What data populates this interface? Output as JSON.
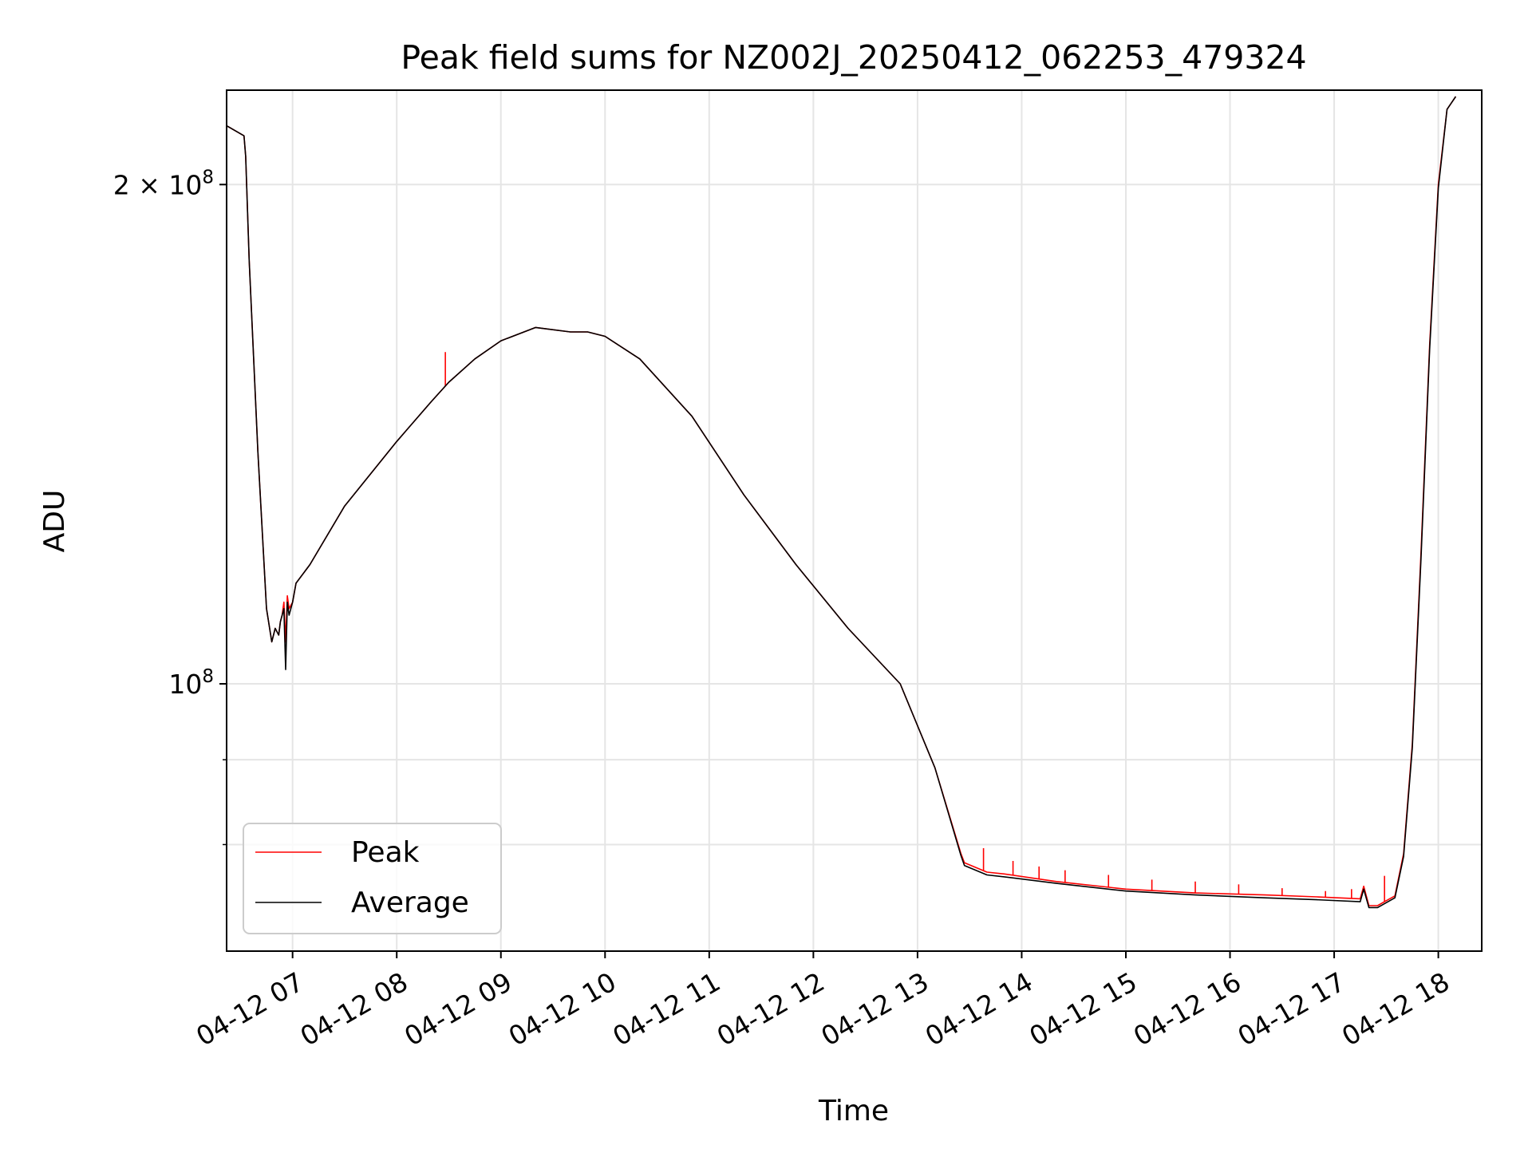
{
  "chart_data": {
    "type": "line",
    "title": "Peak field sums for NZ002J_20250412_062253_479324",
    "xlabel": "Time",
    "ylabel": "ADU",
    "yscale": "log",
    "xlim": [
      "2025-04-12 06:22",
      "2025-04-12 18:25"
    ],
    "ylim": [
      69000000,
      228000000
    ],
    "grid": true,
    "legend_position": "lower-left",
    "x_ticks": [
      {
        "x": "2025-04-12 07:00",
        "label": "04-12 07"
      },
      {
        "x": "2025-04-12 08:00",
        "label": "04-12 08"
      },
      {
        "x": "2025-04-12 09:00",
        "label": "04-12 09"
      },
      {
        "x": "2025-04-12 10:00",
        "label": "04-12 10"
      },
      {
        "x": "2025-04-12 11:00",
        "label": "04-12 11"
      },
      {
        "x": "2025-04-12 12:00",
        "label": "04-12 12"
      },
      {
        "x": "2025-04-12 13:00",
        "label": "04-12 13"
      },
      {
        "x": "2025-04-12 14:00",
        "label": "04-12 14"
      },
      {
        "x": "2025-04-12 15:00",
        "label": "04-12 15"
      },
      {
        "x": "2025-04-12 16:00",
        "label": "04-12 16"
      },
      {
        "x": "2025-04-12 17:00",
        "label": "04-12 17"
      },
      {
        "x": "2025-04-12 18:00",
        "label": "04-12 18"
      }
    ],
    "y_major_ticks": [
      {
        "value": 100000000,
        "base": "10",
        "exp": "8",
        "coef": ""
      },
      {
        "value": 200000000,
        "base": "10",
        "exp": "8",
        "coef": "2 × "
      }
    ],
    "y_minor_ticks": [
      80000000,
      90000000
    ],
    "series": [
      {
        "name": "Peak",
        "color": "#ff0000",
        "x": [
          "2025-04-12 06:22",
          "2025-04-12 06:32",
          "2025-04-12 06:33",
          "2025-04-12 06:35",
          "2025-04-12 06:40",
          "2025-04-12 06:45",
          "2025-04-12 06:48",
          "2025-04-12 06:50",
          "2025-04-12 06:52",
          "2025-04-12 06:53",
          "2025-04-12 06:54",
          "2025-04-12 06:55",
          "2025-04-12 06:56",
          "2025-04-12 06:57",
          "2025-04-12 06:58",
          "2025-04-12 07:00",
          "2025-04-12 07:02",
          "2025-04-12 07:10",
          "2025-04-12 07:30",
          "2025-04-12 08:00",
          "2025-04-12 08:20",
          "2025-04-12 08:30",
          "2025-04-12 08:45",
          "2025-04-12 09:00",
          "2025-04-12 09:20",
          "2025-04-12 09:40",
          "2025-04-12 09:50",
          "2025-04-12 10:00",
          "2025-04-12 10:20",
          "2025-04-12 10:50",
          "2025-04-12 11:20",
          "2025-04-12 11:50",
          "2025-04-12 12:20",
          "2025-04-12 12:50",
          "2025-04-12 13:10",
          "2025-04-12 13:25",
          "2025-04-12 13:27",
          "2025-04-12 13:40",
          "2025-04-12 13:50",
          "2025-04-12 14:20",
          "2025-04-12 15:00",
          "2025-04-12 15:40",
          "2025-04-12 16:20",
          "2025-04-12 16:50",
          "2025-04-12 17:15",
          "2025-04-12 17:17",
          "2025-04-12 17:20",
          "2025-04-12 17:25",
          "2025-04-12 17:30",
          "2025-04-12 17:35",
          "2025-04-12 17:40",
          "2025-04-12 17:45",
          "2025-04-12 17:50",
          "2025-04-12 17:55",
          "2025-04-12 18:00",
          "2025-04-12 18:05",
          "2025-04-12 18:10"
        ],
        "y": [
          217000000,
          214000000,
          208000000,
          180000000,
          138000000,
          111000000,
          106000000,
          108000000,
          107000000,
          109000000,
          110000000,
          112000000,
          106000000,
          113000000,
          111000000,
          112000000,
          115000000,
          118000000,
          128000000,
          140000000,
          148000000,
          152000000,
          157000000,
          161000000,
          164000000,
          163000000,
          163000000,
          162000000,
          157000000,
          145000000,
          130000000,
          118000000,
          108000000,
          100000000,
          89000000,
          79000000,
          78000000,
          77000000,
          76800000,
          76000000,
          75200000,
          74800000,
          74600000,
          74400000,
          74200000,
          75500000,
          73500000,
          73500000,
          74000000,
          74500000,
          79000000,
          92000000,
          120000000,
          160000000,
          200000000,
          222000000,
          226000000
        ],
        "spikes": [
          {
            "x": "2025-04-12 08:28",
            "y": 158500000
          },
          {
            "x": "2025-04-12 13:38",
            "y": 79600000
          },
          {
            "x": "2025-04-12 13:55",
            "y": 78200000
          },
          {
            "x": "2025-04-12 14:10",
            "y": 77600000
          },
          {
            "x": "2025-04-12 14:25",
            "y": 77200000
          },
          {
            "x": "2025-04-12 14:50",
            "y": 76700000
          },
          {
            "x": "2025-04-12 15:15",
            "y": 76200000
          },
          {
            "x": "2025-04-12 15:40",
            "y": 76000000
          },
          {
            "x": "2025-04-12 16:05",
            "y": 75700000
          },
          {
            "x": "2025-04-12 16:30",
            "y": 75300000
          },
          {
            "x": "2025-04-12 16:55",
            "y": 75000000
          },
          {
            "x": "2025-04-12 17:10",
            "y": 75200000
          },
          {
            "x": "2025-04-12 17:29",
            "y": 76600000
          }
        ]
      },
      {
        "name": "Average",
        "color": "#000000",
        "x": [
          "2025-04-12 06:22",
          "2025-04-12 06:32",
          "2025-04-12 06:33",
          "2025-04-12 06:35",
          "2025-04-12 06:40",
          "2025-04-12 06:45",
          "2025-04-12 06:48",
          "2025-04-12 06:50",
          "2025-04-12 06:52",
          "2025-04-12 06:53",
          "2025-04-12 06:54",
          "2025-04-12 06:55",
          "2025-04-12 06:56",
          "2025-04-12 06:57",
          "2025-04-12 06:58",
          "2025-04-12 07:00",
          "2025-04-12 07:02",
          "2025-04-12 07:10",
          "2025-04-12 07:30",
          "2025-04-12 08:00",
          "2025-04-12 08:20",
          "2025-04-12 08:30",
          "2025-04-12 08:45",
          "2025-04-12 09:00",
          "2025-04-12 09:20",
          "2025-04-12 09:40",
          "2025-04-12 09:50",
          "2025-04-12 10:00",
          "2025-04-12 10:20",
          "2025-04-12 10:50",
          "2025-04-12 11:20",
          "2025-04-12 11:50",
          "2025-04-12 12:20",
          "2025-04-12 12:50",
          "2025-04-12 13:10",
          "2025-04-12 13:25",
          "2025-04-12 13:27",
          "2025-04-12 13:40",
          "2025-04-12 13:50",
          "2025-04-12 14:20",
          "2025-04-12 15:00",
          "2025-04-12 15:40",
          "2025-04-12 16:20",
          "2025-04-12 16:50",
          "2025-04-12 17:15",
          "2025-04-12 17:17",
          "2025-04-12 17:20",
          "2025-04-12 17:25",
          "2025-04-12 17:30",
          "2025-04-12 17:35",
          "2025-04-12 17:40",
          "2025-04-12 17:45",
          "2025-04-12 17:50",
          "2025-04-12 17:55",
          "2025-04-12 18:00",
          "2025-04-12 18:05",
          "2025-04-12 18:10"
        ],
        "y": [
          217000000,
          214000000,
          208000000,
          180000000,
          138000000,
          111000000,
          106000000,
          108000000,
          107000000,
          109000000,
          110000000,
          111000000,
          102000000,
          112000000,
          110000000,
          112000000,
          115000000,
          118000000,
          128000000,
          140000000,
          148000000,
          152000000,
          157000000,
          161000000,
          164000000,
          163000000,
          163000000,
          162000000,
          157000000,
          145000000,
          130000000,
          118000000,
          108000000,
          100000000,
          89000000,
          78800000,
          77700000,
          76700000,
          76500000,
          75800000,
          75000000,
          74600000,
          74300000,
          74100000,
          73900000,
          75200000,
          73300000,
          73300000,
          73800000,
          74300000,
          78700000,
          91500000,
          119000000,
          159000000,
          199000000,
          222000000,
          226000000
        ]
      }
    ]
  }
}
